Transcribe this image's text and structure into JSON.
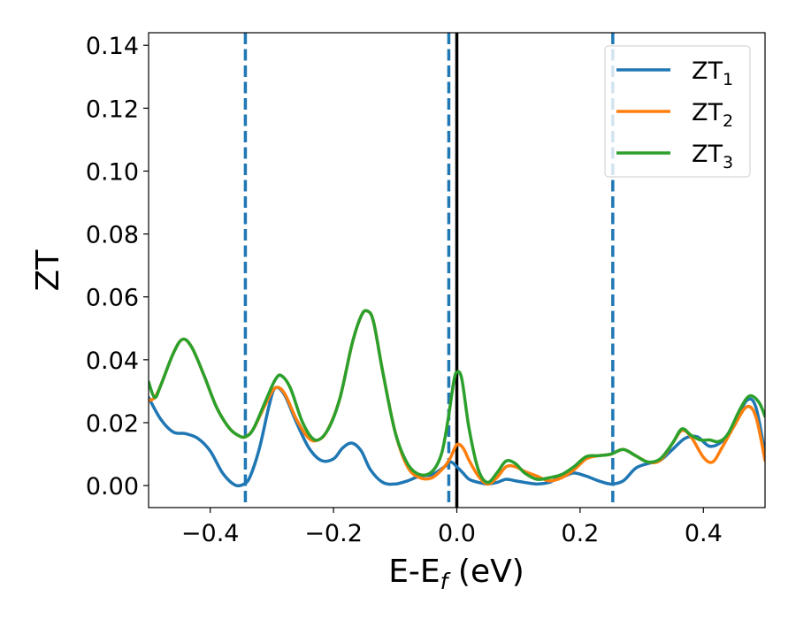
{
  "chart_data": {
    "type": "line",
    "xlabel": {
      "main": "E-E",
      "sub": "f",
      "unit": " (eV)"
    },
    "ylabel": "ZT",
    "xlim": [
      -0.5,
      0.5
    ],
    "ylim": [
      -0.007,
      0.144
    ],
    "xticks": [
      -0.4,
      -0.2,
      0.0,
      0.2,
      0.4
    ],
    "xtick_labels": [
      "−0.4",
      "−0.2",
      "0.0",
      "0.2",
      "0.4"
    ],
    "yticks": [
      0.0,
      0.02,
      0.04,
      0.06,
      0.08,
      0.1,
      0.12,
      0.14
    ],
    "ytick_labels": [
      "0.00",
      "0.02",
      "0.04",
      "0.06",
      "0.08",
      "0.10",
      "0.12",
      "0.14"
    ],
    "grid": false,
    "legend_position": "top-right",
    "vlines": [
      {
        "x": -0.343,
        "style": "dashed",
        "color": "#1f77b4"
      },
      {
        "x": -0.013,
        "style": "dashed",
        "color": "#1f77b4"
      },
      {
        "x": 0.0,
        "style": "solid",
        "color": "#000000"
      },
      {
        "x": 0.253,
        "style": "dashed",
        "color": "#1f77b4"
      }
    ],
    "series": [
      {
        "name": "ZT",
        "sub": "1",
        "color": "#1f77b4",
        "points": [
          [
            -0.5,
            0.028
          ],
          [
            -0.48,
            0.021
          ],
          [
            -0.46,
            0.017
          ],
          [
            -0.44,
            0.0165
          ],
          [
            -0.42,
            0.015
          ],
          [
            -0.4,
            0.011
          ],
          [
            -0.38,
            0.004
          ],
          [
            -0.36,
            0.0002
          ],
          [
            -0.345,
            0.0005
          ],
          [
            -0.335,
            0.003
          ],
          [
            -0.32,
            0.012
          ],
          [
            -0.305,
            0.025
          ],
          [
            -0.295,
            0.031
          ],
          [
            -0.28,
            0.029
          ],
          [
            -0.26,
            0.02
          ],
          [
            -0.24,
            0.012
          ],
          [
            -0.22,
            0.008
          ],
          [
            -0.2,
            0.0085
          ],
          [
            -0.185,
            0.012
          ],
          [
            -0.17,
            0.0135
          ],
          [
            -0.155,
            0.011
          ],
          [
            -0.14,
            0.005
          ],
          [
            -0.12,
            0.001
          ],
          [
            -0.1,
            0.0005
          ],
          [
            -0.08,
            0.0015
          ],
          [
            -0.06,
            0.003
          ],
          [
            -0.04,
            0.0035
          ],
          [
            -0.02,
            0.006
          ],
          [
            -0.01,
            0.0075
          ],
          [
            0.0,
            0.006
          ],
          [
            0.01,
            0.004
          ],
          [
            0.02,
            0.002
          ],
          [
            0.035,
            0.001
          ],
          [
            0.05,
            0.0005
          ],
          [
            0.065,
            0.001
          ],
          [
            0.08,
            0.002
          ],
          [
            0.095,
            0.0015
          ],
          [
            0.11,
            0.001
          ],
          [
            0.13,
            0.0005
          ],
          [
            0.15,
            0.001
          ],
          [
            0.16,
            0.002
          ],
          [
            0.175,
            0.003
          ],
          [
            0.19,
            0.004
          ],
          [
            0.21,
            0.003
          ],
          [
            0.23,
            0.0015
          ],
          [
            0.25,
            0.0005
          ],
          [
            0.27,
            0.0015
          ],
          [
            0.29,
            0.0055
          ],
          [
            0.31,
            0.007
          ],
          [
            0.33,
            0.008
          ],
          [
            0.35,
            0.0115
          ],
          [
            0.37,
            0.015
          ],
          [
            0.39,
            0.0155
          ],
          [
            0.41,
            0.0125
          ],
          [
            0.43,
            0.014
          ],
          [
            0.45,
            0.019
          ],
          [
            0.47,
            0.027
          ],
          [
            0.485,
            0.025
          ],
          [
            0.5,
            0.01
          ]
        ]
      },
      {
        "name": "ZT",
        "sub": "2",
        "color": "#ff7f0e",
        "points": [
          [
            -0.5,
            0.027
          ],
          [
            -0.49,
            0.028
          ],
          [
            -0.48,
            0.032
          ],
          [
            -0.46,
            0.042
          ],
          [
            -0.445,
            0.0465
          ],
          [
            -0.43,
            0.044
          ],
          [
            -0.41,
            0.035
          ],
          [
            -0.39,
            0.025
          ],
          [
            -0.37,
            0.0185
          ],
          [
            -0.355,
            0.016
          ],
          [
            -0.343,
            0.0155
          ],
          [
            -0.33,
            0.018
          ],
          [
            -0.31,
            0.026
          ],
          [
            -0.295,
            0.031
          ],
          [
            -0.28,
            0.0295
          ],
          [
            -0.26,
            0.021
          ],
          [
            -0.24,
            0.015
          ],
          [
            -0.225,
            0.0145
          ],
          [
            -0.21,
            0.0175
          ],
          [
            -0.19,
            0.0275
          ],
          [
            -0.17,
            0.045
          ],
          [
            -0.155,
            0.054
          ],
          [
            -0.145,
            0.0555
          ],
          [
            -0.135,
            0.052
          ],
          [
            -0.12,
            0.036
          ],
          [
            -0.1,
            0.017
          ],
          [
            -0.08,
            0.006
          ],
          [
            -0.06,
            0.0025
          ],
          [
            -0.04,
            0.0025
          ],
          [
            -0.02,
            0.006
          ],
          [
            -0.01,
            0.009
          ],
          [
            0.0,
            0.013
          ],
          [
            0.01,
            0.012
          ],
          [
            0.02,
            0.008
          ],
          [
            0.035,
            0.003
          ],
          [
            0.05,
            0.0005
          ],
          [
            0.065,
            0.0025
          ],
          [
            0.08,
            0.006
          ],
          [
            0.095,
            0.006
          ],
          [
            0.11,
            0.0045
          ],
          [
            0.13,
            0.003
          ],
          [
            0.15,
            0.0015
          ],
          [
            0.17,
            0.0025
          ],
          [
            0.19,
            0.005
          ],
          [
            0.21,
            0.0085
          ],
          [
            0.23,
            0.0095
          ],
          [
            0.25,
            0.01
          ],
          [
            0.27,
            0.0115
          ],
          [
            0.29,
            0.0095
          ],
          [
            0.31,
            0.0075
          ],
          [
            0.33,
            0.008
          ],
          [
            0.35,
            0.0135
          ],
          [
            0.365,
            0.0175
          ],
          [
            0.38,
            0.0155
          ],
          [
            0.4,
            0.009
          ],
          [
            0.415,
            0.0075
          ],
          [
            0.43,
            0.012
          ],
          [
            0.45,
            0.019
          ],
          [
            0.47,
            0.025
          ],
          [
            0.485,
            0.022
          ],
          [
            0.5,
            0.008
          ]
        ]
      },
      {
        "name": "ZT",
        "sub": "3",
        "color": "#2ca02c",
        "points": [
          [
            -0.5,
            0.033
          ],
          [
            -0.49,
            0.028
          ],
          [
            -0.48,
            0.032
          ],
          [
            -0.46,
            0.042
          ],
          [
            -0.445,
            0.0465
          ],
          [
            -0.43,
            0.044
          ],
          [
            -0.41,
            0.035
          ],
          [
            -0.39,
            0.025
          ],
          [
            -0.37,
            0.0185
          ],
          [
            -0.355,
            0.016
          ],
          [
            -0.343,
            0.0155
          ],
          [
            -0.33,
            0.018
          ],
          [
            -0.31,
            0.027
          ],
          [
            -0.295,
            0.0335
          ],
          [
            -0.285,
            0.035
          ],
          [
            -0.27,
            0.031
          ],
          [
            -0.25,
            0.02
          ],
          [
            -0.23,
            0.0145
          ],
          [
            -0.21,
            0.0175
          ],
          [
            -0.19,
            0.0275
          ],
          [
            -0.17,
            0.045
          ],
          [
            -0.155,
            0.054
          ],
          [
            -0.145,
            0.0555
          ],
          [
            -0.135,
            0.052
          ],
          [
            -0.12,
            0.036
          ],
          [
            -0.1,
            0.017
          ],
          [
            -0.08,
            0.007
          ],
          [
            -0.06,
            0.0035
          ],
          [
            -0.04,
            0.0045
          ],
          [
            -0.025,
            0.01
          ],
          [
            -0.015,
            0.02
          ],
          [
            -0.005,
            0.033
          ],
          [
            0.0,
            0.036
          ],
          [
            0.008,
            0.034
          ],
          [
            0.02,
            0.018
          ],
          [
            0.035,
            0.005
          ],
          [
            0.05,
            0.001
          ],
          [
            0.065,
            0.004
          ],
          [
            0.08,
            0.0078
          ],
          [
            0.095,
            0.007
          ],
          [
            0.11,
            0.004
          ],
          [
            0.13,
            0.002
          ],
          [
            0.15,
            0.0025
          ],
          [
            0.17,
            0.0035
          ],
          [
            0.19,
            0.006
          ],
          [
            0.21,
            0.0092
          ],
          [
            0.23,
            0.0095
          ],
          [
            0.25,
            0.01
          ],
          [
            0.27,
            0.0115
          ],
          [
            0.29,
            0.0095
          ],
          [
            0.31,
            0.0075
          ],
          [
            0.33,
            0.0085
          ],
          [
            0.35,
            0.0135
          ],
          [
            0.365,
            0.018
          ],
          [
            0.38,
            0.016
          ],
          [
            0.395,
            0.0145
          ],
          [
            0.41,
            0.0145
          ],
          [
            0.425,
            0.014
          ],
          [
            0.44,
            0.0165
          ],
          [
            0.46,
            0.0245
          ],
          [
            0.475,
            0.0285
          ],
          [
            0.49,
            0.0265
          ],
          [
            0.5,
            0.022
          ]
        ]
      }
    ]
  }
}
